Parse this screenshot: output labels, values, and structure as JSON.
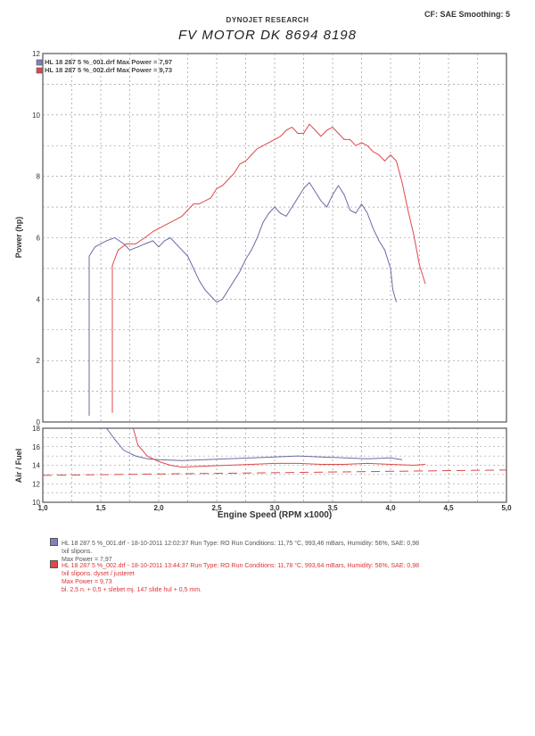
{
  "header": {
    "company": "DYNOJET RESEARCH",
    "settings": "CF: SAE  Smoothing: 5",
    "title": "FV MOTOR DK 8694 8198"
  },
  "chart_data": [
    {
      "type": "line",
      "ylabel": "Power (hp)",
      "xlim": [
        1.0,
        5.0
      ],
      "ylim": [
        0,
        12
      ],
      "yticks": [
        0,
        2,
        4,
        6,
        8,
        10,
        12
      ],
      "grid": true,
      "legend_position": "top-left",
      "series": [
        {
          "name": "HL 18 287 5 %_001.drf Max Power = 7,97",
          "color": "#6b6ba6",
          "x": [
            1.4,
            1.4,
            1.45,
            1.55,
            1.62,
            1.7,
            1.75,
            1.82,
            1.88,
            1.95,
            2.0,
            2.05,
            2.1,
            2.15,
            2.2,
            2.25,
            2.3,
            2.35,
            2.4,
            2.45,
            2.5,
            2.55,
            2.6,
            2.65,
            2.7,
            2.75,
            2.8,
            2.85,
            2.9,
            2.95,
            3.0,
            3.05,
            3.1,
            3.15,
            3.2,
            3.25,
            3.3,
            3.35,
            3.4,
            3.45,
            3.5,
            3.55,
            3.6,
            3.65,
            3.7,
            3.75,
            3.8,
            3.85,
            3.9,
            3.95,
            4.0,
            4.02,
            4.05
          ],
          "y": [
            0.2,
            5.4,
            5.7,
            5.9,
            6.0,
            5.8,
            5.6,
            5.7,
            5.8,
            5.9,
            5.7,
            5.9,
            6.0,
            5.8,
            5.6,
            5.4,
            5.0,
            4.6,
            4.3,
            4.1,
            3.9,
            4.0,
            4.3,
            4.6,
            4.9,
            5.3,
            5.6,
            6.0,
            6.5,
            6.8,
            7.0,
            6.8,
            6.7,
            7.0,
            7.3,
            7.6,
            7.8,
            7.5,
            7.2,
            7.0,
            7.4,
            7.7,
            7.4,
            6.9,
            6.8,
            7.1,
            6.8,
            6.3,
            5.9,
            5.6,
            5.0,
            4.3,
            3.9
          ]
        },
        {
          "name": "HL 18 287 5 %_002.drf Max Power = 9,73",
          "color": "#e04848",
          "x": [
            1.6,
            1.6,
            1.65,
            1.72,
            1.8,
            1.88,
            1.95,
            2.0,
            2.05,
            2.1,
            2.15,
            2.2,
            2.25,
            2.3,
            2.35,
            2.4,
            2.45,
            2.5,
            2.55,
            2.6,
            2.65,
            2.7,
            2.75,
            2.8,
            2.85,
            2.9,
            2.95,
            3.0,
            3.05,
            3.1,
            3.15,
            3.2,
            3.25,
            3.3,
            3.35,
            3.4,
            3.45,
            3.5,
            3.55,
            3.6,
            3.65,
            3.7,
            3.75,
            3.8,
            3.85,
            3.9,
            3.95,
            4.0,
            4.05,
            4.1,
            4.15,
            4.2,
            4.25,
            4.3
          ],
          "y": [
            0.3,
            5.1,
            5.6,
            5.8,
            5.8,
            6.0,
            6.2,
            6.3,
            6.4,
            6.5,
            6.6,
            6.7,
            6.9,
            7.1,
            7.1,
            7.2,
            7.3,
            7.6,
            7.7,
            7.9,
            8.1,
            8.4,
            8.5,
            8.7,
            8.9,
            9.0,
            9.1,
            9.2,
            9.3,
            9.5,
            9.6,
            9.4,
            9.4,
            9.7,
            9.5,
            9.3,
            9.5,
            9.6,
            9.4,
            9.2,
            9.2,
            9.0,
            9.1,
            9.0,
            8.8,
            8.7,
            8.5,
            8.7,
            8.5,
            7.8,
            6.9,
            6.1,
            5.1,
            4.5
          ]
        }
      ]
    },
    {
      "type": "line",
      "xlabel": "Engine Speed (RPM x1000)",
      "ylabel": "Air / Fuel",
      "xlim": [
        1.0,
        5.0
      ],
      "ylim": [
        10,
        18
      ],
      "yticks": [
        10,
        12,
        14,
        16,
        18
      ],
      "xticks": [
        "1,0",
        "1,5",
        "2,0",
        "2,5",
        "3,0",
        "3,5",
        "4,0",
        "4,5",
        "5,0"
      ],
      "grid": true,
      "reference_line": 13.1,
      "series": [
        {
          "color": "#6b6ba6",
          "x": [
            1.55,
            1.62,
            1.7,
            1.8,
            1.9,
            2.0,
            2.2,
            2.4,
            2.6,
            2.8,
            3.0,
            3.2,
            3.4,
            3.6,
            3.8,
            4.0,
            4.1
          ],
          "y": [
            18.0,
            16.8,
            15.6,
            15.0,
            14.7,
            14.6,
            14.5,
            14.6,
            14.7,
            14.8,
            14.9,
            15.0,
            14.9,
            14.8,
            14.7,
            14.8,
            14.6
          ]
        },
        {
          "color": "#e04848",
          "x": [
            1.78,
            1.82,
            1.9,
            2.0,
            2.1,
            2.2,
            2.4,
            2.6,
            2.8,
            3.0,
            3.2,
            3.4,
            3.6,
            3.8,
            4.0,
            4.2,
            4.3
          ],
          "y": [
            18.0,
            16.2,
            15.0,
            14.4,
            14.0,
            13.8,
            13.9,
            14.0,
            14.1,
            14.2,
            14.2,
            14.1,
            14.1,
            14.2,
            14.1,
            14.0,
            14.1
          ]
        }
      ]
    }
  ],
  "legend_info": [
    {
      "line1": "HL 18 287 5 %_001.drf - 18-10-2011 12:02:37  Run Type: RO  Run Conditions: 11,75 °C, 993,46 mBars,  Humidity:  56%, SAE: 0,98",
      "line2": "Ixil slipons.",
      "line3": "Max Power = 7,97",
      "line4": "",
      "color": "#8080c0"
    },
    {
      "line1": "HL 18 287 5 %_002.drf - 18-10-2011 13:44:37  Run Type: RO  Run Conditions: 11,78 °C, 993,64 mBars,  Humidity:  56%, SAE: 0,98",
      "line2": "Ixil slipons. dyset / justeret",
      "line3": "Max Power = 9,73",
      "line4": "bl. 2,5  n. + 0,5 + slebet  mj. 147 slide hul + 0,5 mm.",
      "color": "#e04848"
    }
  ]
}
